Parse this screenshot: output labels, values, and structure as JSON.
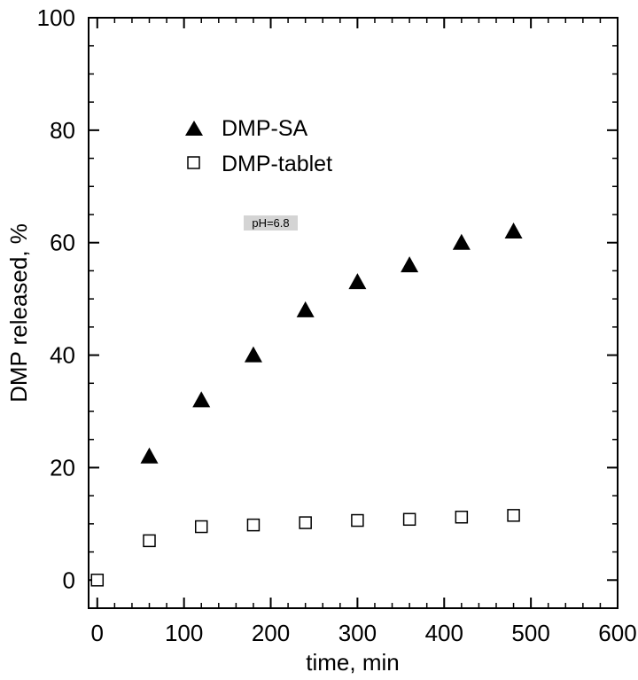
{
  "chart_data": {
    "type": "scatter",
    "xlabel": "time, min",
    "ylabel": "DMP released, %",
    "xlim": [
      -10,
      600
    ],
    "ylim": [
      -5,
      100
    ],
    "x_ticks": [
      0,
      100,
      200,
      300,
      400,
      500,
      600
    ],
    "y_ticks": [
      0,
      20,
      40,
      60,
      80,
      100
    ],
    "grid": false,
    "legend_position": "upper-left",
    "annotation": "pH=6.8",
    "series": [
      {
        "name": "DMP-SA",
        "marker": "filled-triangle",
        "color": "#000000",
        "x": [
          60,
          120,
          180,
          240,
          300,
          360,
          420,
          480
        ],
        "y": [
          22,
          32,
          40,
          48,
          53,
          56,
          60,
          62
        ]
      },
      {
        "name": "DMP-tablet",
        "marker": "open-square",
        "color": "#000000",
        "x": [
          0,
          60,
          120,
          180,
          240,
          300,
          360,
          420,
          480
        ],
        "y": [
          0,
          7,
          9.5,
          9.8,
          10.2,
          10.6,
          10.8,
          11.2,
          11.5
        ]
      }
    ]
  }
}
